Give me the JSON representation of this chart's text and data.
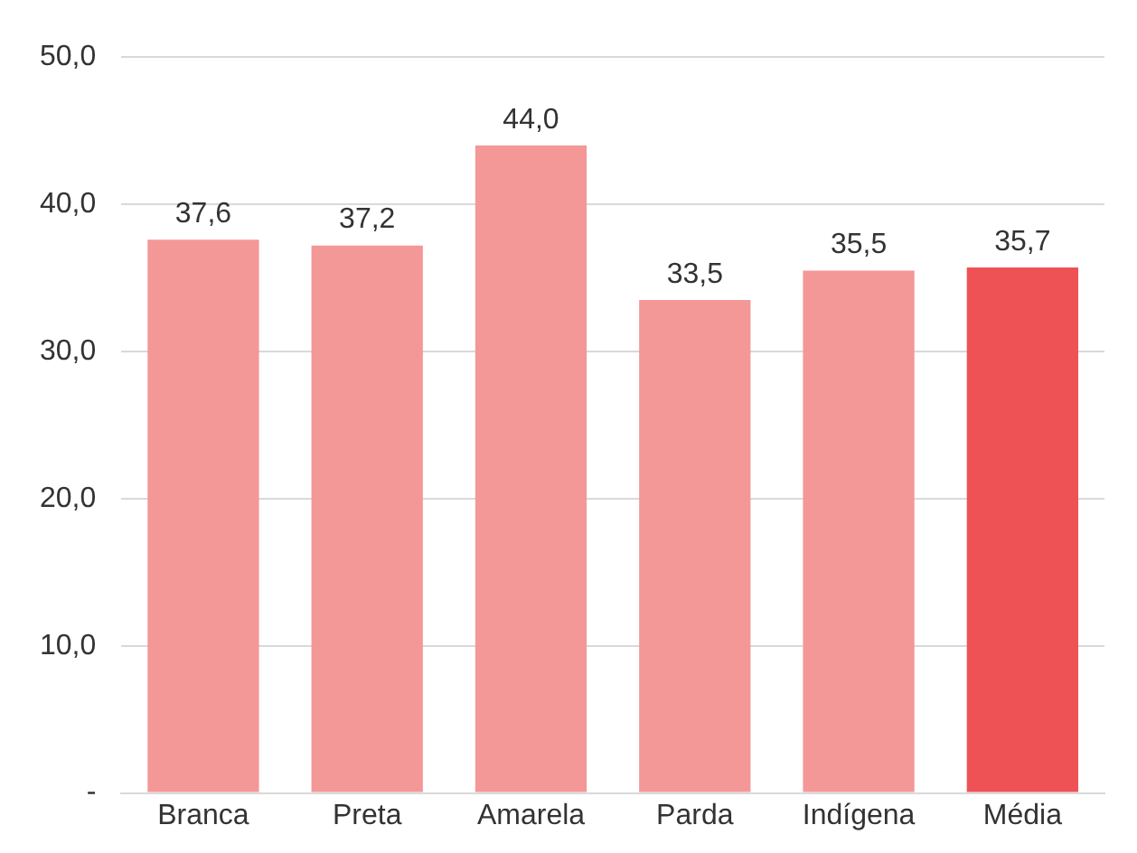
{
  "chart_data": {
    "type": "bar",
    "categories": [
      "Branca",
      "Preta",
      "Amarela",
      "Parda",
      "Indígena",
      "Média"
    ],
    "values": [
      37.6,
      37.2,
      44.0,
      33.5,
      35.5,
      35.7
    ],
    "colors": [
      "#f49797",
      "#f49797",
      "#f49797",
      "#f49797",
      "#f49797",
      "#ee5254"
    ],
    "value_labels": [
      "37,6",
      "37,2",
      "44,0",
      "33,5",
      "35,5",
      "35,7"
    ],
    "ylim": [
      0,
      50
    ],
    "yticks": [
      {
        "value": 0,
        "label": "-"
      },
      {
        "value": 10,
        "label": "10,0"
      },
      {
        "value": 20,
        "label": "20,0"
      },
      {
        "value": 30,
        "label": "30,0"
      },
      {
        "value": 40,
        "label": "40,0"
      },
      {
        "value": 50,
        "label": "50,0"
      }
    ],
    "grid": "y",
    "legend": false
  }
}
